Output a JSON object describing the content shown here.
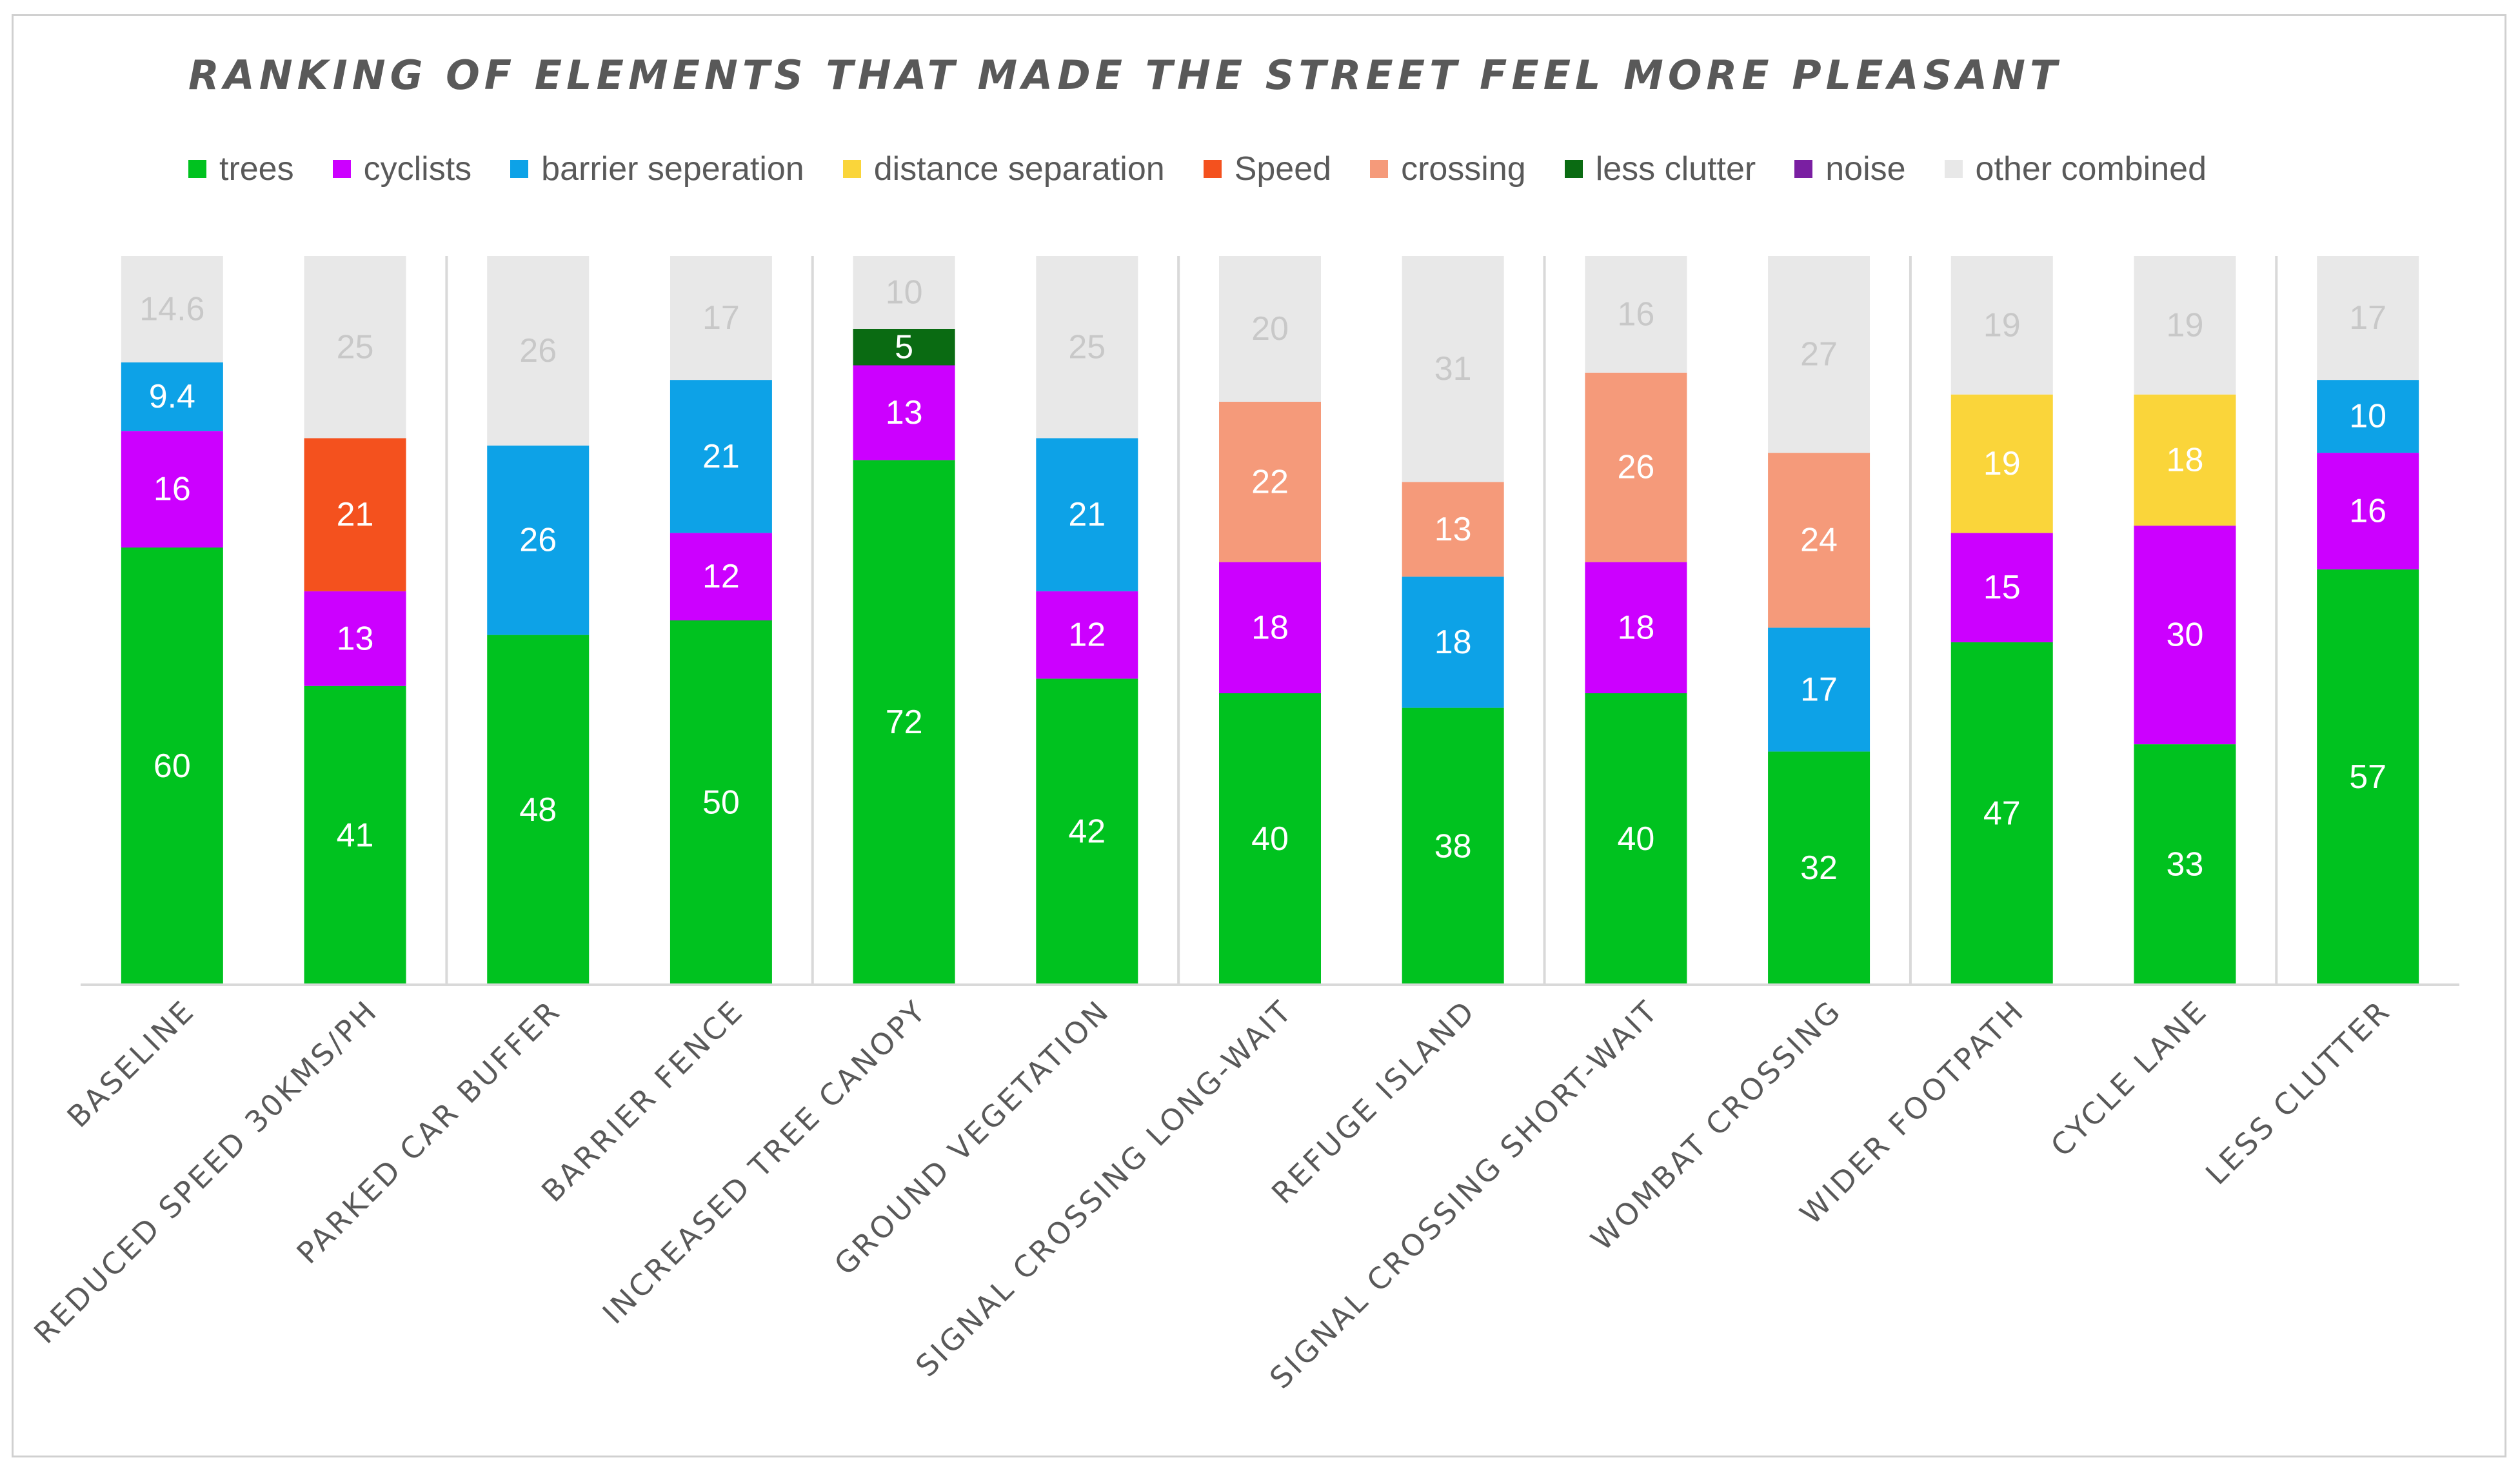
{
  "chart_data": {
    "type": "bar",
    "stacked": true,
    "title": "RANKING OF ELEMENTS THAT MADE THE STREET FEEL MORE PLEASANT",
    "xlabel": "",
    "ylabel": "",
    "ylim": [
      0,
      100
    ],
    "grid": false,
    "legend_position": "top",
    "categories": [
      "BASELINE",
      "REDUCED SPEED 30KMS/PH",
      "PARKED CAR BUFFER",
      "BARRIER FENCE",
      "INCREASED TREE CANOPY",
      "GROUND VEGETATION",
      "SIGNAL CROSSING LONG-WAIT",
      "REFUGE ISLAND",
      "SIGNAL CROSSING SHORT-WAIT",
      "WOMBAT CROSSING",
      "WIDER FOOTPATH",
      "CYCLE LANE",
      "LESS CLUTTER"
    ],
    "series": [
      {
        "name": "trees",
        "color": "#00c21f",
        "values": [
          60,
          41,
          48,
          50,
          72,
          42,
          40,
          38,
          40,
          32,
          47,
          33,
          57
        ]
      },
      {
        "name": "cyclists",
        "color": "#cc00ff",
        "values": [
          16,
          13,
          null,
          12,
          13,
          12,
          18,
          null,
          18,
          null,
          15,
          30,
          16
        ]
      },
      {
        "name": "barrier seperation",
        "color": "#0da2e7",
        "values": [
          9.4,
          null,
          26,
          21,
          null,
          21,
          null,
          18,
          null,
          17,
          null,
          null,
          10
        ]
      },
      {
        "name": "distance separation",
        "color": "#fad53a",
        "values": [
          null,
          null,
          null,
          null,
          null,
          null,
          null,
          null,
          null,
          null,
          19,
          18,
          null
        ]
      },
      {
        "name": "Speed",
        "color": "#f4511e",
        "values": [
          null,
          21,
          null,
          null,
          null,
          null,
          null,
          null,
          null,
          null,
          null,
          null,
          null
        ]
      },
      {
        "name": "crossing",
        "color": "#f59a7a",
        "values": [
          null,
          null,
          null,
          null,
          null,
          null,
          22,
          13,
          26,
          24,
          null,
          null,
          null
        ]
      },
      {
        "name": "less clutter",
        "color": "#0a6b12",
        "values": [
          null,
          null,
          null,
          null,
          5,
          null,
          null,
          null,
          null,
          null,
          null,
          null,
          null
        ]
      },
      {
        "name": "noise",
        "color": "#7a1fa2",
        "values": [
          null,
          null,
          null,
          null,
          null,
          null,
          null,
          null,
          null,
          null,
          null,
          null,
          null
        ]
      },
      {
        "name": "other combined",
        "color": "#e8e8e8",
        "values": [
          14.6,
          25,
          26,
          17,
          10,
          25,
          20,
          31,
          16,
          27,
          19,
          19,
          17
        ]
      }
    ]
  }
}
